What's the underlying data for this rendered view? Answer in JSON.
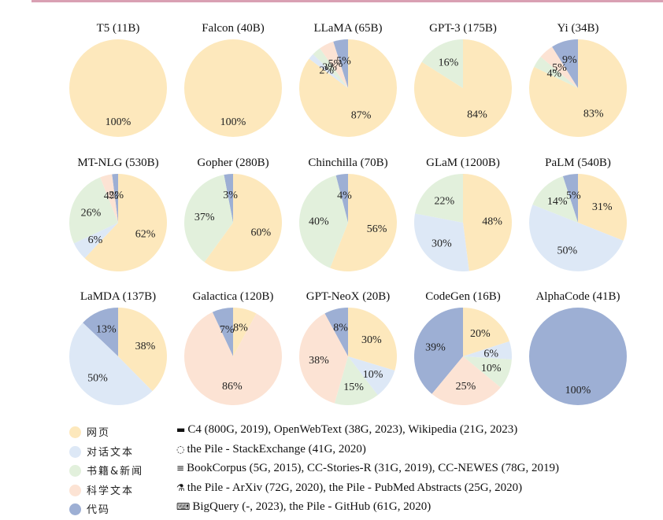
{
  "colors": {
    "网页": "#fde8bc",
    "对话文本": "#dde8f6",
    "书籍&新闻": "#e2f0dc",
    "科学文本": "#fce3d4",
    "代码": "#9dafd4"
  },
  "chart_data": [
    {
      "type": "pie",
      "title": "T5 (11B)",
      "slices": [
        {
          "category": "网页",
          "value": 100,
          "label": "100%"
        }
      ]
    },
    {
      "type": "pie",
      "title": "Falcon (40B)",
      "slices": [
        {
          "category": "网页",
          "value": 100,
          "label": "100%"
        }
      ]
    },
    {
      "type": "pie",
      "title": "LLaMA (65B)",
      "slices": [
        {
          "category": "网页",
          "value": 87,
          "label": "87%"
        },
        {
          "category": "对话文本",
          "value": 2,
          "label": "2%"
        },
        {
          "category": "书籍&新闻",
          "value": 3,
          "label": "3%"
        },
        {
          "category": "科学文本",
          "value": 5,
          "label": "5%"
        },
        {
          "category": "代码",
          "value": 5,
          "label": "5%"
        }
      ]
    },
    {
      "type": "pie",
      "title": "GPT-3 (175B)",
      "slices": [
        {
          "category": "网页",
          "value": 84,
          "label": "84%"
        },
        {
          "category": "书籍&新闻",
          "value": 16,
          "label": "16%"
        }
      ]
    },
    {
      "type": "pie",
      "title": "Yi (34B)",
      "slices": [
        {
          "category": "网页",
          "value": 83,
          "label": "83%"
        },
        {
          "category": "书籍&新闻",
          "value": 4,
          "label": "4%"
        },
        {
          "category": "科学文本",
          "value": 5,
          "label": "5%"
        },
        {
          "category": "代码",
          "value": 9,
          "label": "9%"
        }
      ]
    },
    {
      "type": "pie",
      "title": "MT-NLG (530B)",
      "slices": [
        {
          "category": "网页",
          "value": 62,
          "label": "62%"
        },
        {
          "category": "对话文本",
          "value": 6,
          "label": "6%"
        },
        {
          "category": "书籍&新闻",
          "value": 26,
          "label": "26%"
        },
        {
          "category": "科学文本",
          "value": 4,
          "label": "4%"
        },
        {
          "category": "代码",
          "value": 2,
          "label": "2%"
        }
      ]
    },
    {
      "type": "pie",
      "title": "Gopher (280B)",
      "slices": [
        {
          "category": "网页",
          "value": 60,
          "label": "60%"
        },
        {
          "category": "书籍&新闻",
          "value": 37,
          "label": "37%"
        },
        {
          "category": "代码",
          "value": 3,
          "label": "3%"
        }
      ]
    },
    {
      "type": "pie",
      "title": "Chinchilla (70B)",
      "slices": [
        {
          "category": "网页",
          "value": 56,
          "label": "56%"
        },
        {
          "category": "书籍&新闻",
          "value": 40,
          "label": "40%"
        },
        {
          "category": "代码",
          "value": 4,
          "label": "4%"
        }
      ]
    },
    {
      "type": "pie",
      "title": "GLaM (1200B)",
      "slices": [
        {
          "category": "网页",
          "value": 48,
          "label": "48%"
        },
        {
          "category": "对话文本",
          "value": 30,
          "label": "30%"
        },
        {
          "category": "书籍&新闻",
          "value": 22,
          "label": "22%"
        }
      ]
    },
    {
      "type": "pie",
      "title": "PaLM (540B)",
      "slices": [
        {
          "category": "网页",
          "value": 31,
          "label": "31%"
        },
        {
          "category": "对话文本",
          "value": 50,
          "label": "50%"
        },
        {
          "category": "书籍&新闻",
          "value": 14,
          "label": "14%"
        },
        {
          "category": "代码",
          "value": 5,
          "label": "5%"
        }
      ]
    },
    {
      "type": "pie",
      "title": "LaMDA (137B)",
      "slices": [
        {
          "category": "网页",
          "value": 38,
          "label": "38%"
        },
        {
          "category": "对话文本",
          "value": 50,
          "label": "50%"
        },
        {
          "category": "代码",
          "value": 13,
          "label": "13%"
        }
      ]
    },
    {
      "type": "pie",
      "title": "Galactica (120B)",
      "slices": [
        {
          "category": "网页",
          "value": 8,
          "label": "8%"
        },
        {
          "category": "科学文本",
          "value": 86,
          "label": "86%"
        },
        {
          "category": "代码",
          "value": 7,
          "label": "7%"
        }
      ]
    },
    {
      "type": "pie",
      "title": "GPT-NeoX (20B)",
      "slices": [
        {
          "category": "网页",
          "value": 30,
          "label": "30%"
        },
        {
          "category": "对话文本",
          "value": 10,
          "label": "10%"
        },
        {
          "category": "书籍&新闻",
          "value": 15,
          "label": "15%"
        },
        {
          "category": "科学文本",
          "value": 38,
          "label": "38%"
        },
        {
          "category": "代码",
          "value": 8,
          "label": "8%"
        }
      ]
    },
    {
      "type": "pie",
      "title": "CodeGen (16B)",
      "slices": [
        {
          "category": "网页",
          "value": 20,
          "label": "20%"
        },
        {
          "category": "对话文本",
          "value": 6,
          "label": "6%"
        },
        {
          "category": "书籍&新闻",
          "value": 10,
          "label": "10%"
        },
        {
          "category": "科学文本",
          "value": 25,
          "label": "25%"
        },
        {
          "category": "代码",
          "value": 39,
          "label": "39%"
        }
      ]
    },
    {
      "type": "pie",
      "title": "AlphaCode (41B)",
      "slices": [
        {
          "category": "代码",
          "value": 100,
          "label": "100%"
        }
      ]
    }
  ],
  "legend": [
    {
      "label": "网页",
      "sources": "C4 (800G, 2019), OpenWebText (38G, 2023), Wikipedia (21G, 2023)"
    },
    {
      "label": "对话文本",
      "sources": "the Pile - StackExchange (41G, 2020)"
    },
    {
      "label": "书籍&新闻",
      "sources": "BookCorpus (5G, 2015), CC-Stories-R (31G, 2019), CC-NEWES (78G, 2019)"
    },
    {
      "label": "科学文本",
      "sources": "the Pile - ArXiv (72G, 2020), the Pile - PubMed Abstracts (25G, 2020)"
    },
    {
      "label": "代码",
      "sources": "BigQuery (-, 2023), the Pile - GitHub (61G, 2020)"
    }
  ]
}
